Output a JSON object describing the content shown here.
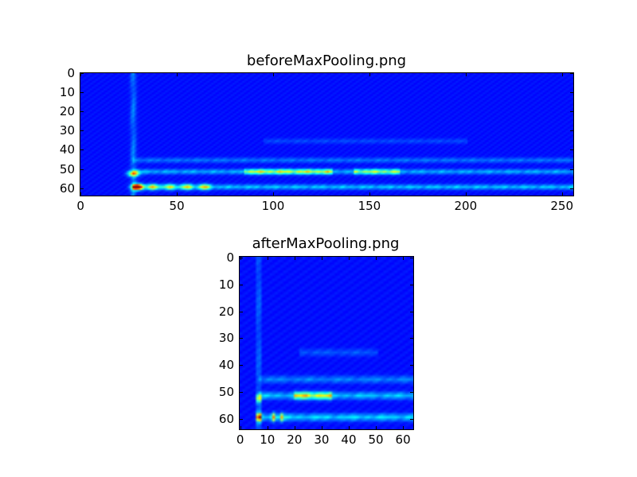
{
  "chart_data": [
    {
      "type": "heatmap",
      "title": "beforeMaxPooling.png",
      "colormap": "jet",
      "xlim": [
        0,
        256
      ],
      "ylim": [
        64,
        0
      ],
      "xticks": [
        "0",
        "50",
        "100",
        "150",
        "200",
        "250"
      ],
      "yticks": [
        "0",
        "10",
        "20",
        "30",
        "40",
        "50",
        "60"
      ],
      "shape": [
        64,
        256
      ],
      "features": {
        "spots": [
          {
            "x": 29,
            "y": 59,
            "v": 1.0
          },
          {
            "x": 27,
            "y": 52,
            "v": 0.6
          },
          {
            "x": 37,
            "y": 59,
            "v": 0.45
          },
          {
            "x": 46,
            "y": 59,
            "v": 0.4
          },
          {
            "x": 55,
            "y": 59,
            "v": 0.42
          },
          {
            "x": 64,
            "y": 59,
            "v": 0.45
          }
        ],
        "lines": [
          {
            "y": 59,
            "x0": 27,
            "x1": 256,
            "v": 0.25
          },
          {
            "y": 51,
            "x0": 27,
            "x1": 256,
            "v": 0.22
          },
          {
            "y": 51,
            "x0": 85,
            "x1": 130,
            "v": 0.42
          },
          {
            "y": 51,
            "x0": 142,
            "x1": 165,
            "v": 0.35
          },
          {
            "y": 45,
            "x0": 27,
            "x1": 256,
            "v": 0.14
          },
          {
            "y": 35,
            "x0": 95,
            "x1": 200,
            "v": 0.08
          }
        ],
        "columns": [
          {
            "x": 27,
            "y0": 0,
            "y1": 64,
            "v": 0.15
          }
        ]
      }
    },
    {
      "type": "heatmap",
      "title": "afterMaxPooling.png",
      "colormap": "jet",
      "xlim": [
        0,
        64
      ],
      "ylim": [
        64,
        0
      ],
      "xticks": [
        "0",
        "10",
        "20",
        "30",
        "40",
        "50",
        "60"
      ],
      "yticks": [
        "0",
        "10",
        "20",
        "30",
        "40",
        "50",
        "60"
      ],
      "shape": [
        64,
        64
      ],
      "features": {
        "spots": [
          {
            "x": 6.5,
            "y": 59,
            "v": 1.0
          },
          {
            "x": 6.5,
            "y": 52,
            "v": 0.65
          },
          {
            "x": 12,
            "y": 59,
            "v": 0.5
          },
          {
            "x": 15,
            "y": 59,
            "v": 0.45
          }
        ],
        "lines": [
          {
            "y": 59,
            "x0": 7,
            "x1": 64,
            "v": 0.28
          },
          {
            "y": 51,
            "x0": 7,
            "x1": 64,
            "v": 0.25
          },
          {
            "y": 51,
            "x0": 20,
            "x1": 33,
            "v": 0.45
          },
          {
            "y": 45,
            "x0": 7,
            "x1": 64,
            "v": 0.16
          },
          {
            "y": 35,
            "x0": 22,
            "x1": 50,
            "v": 0.1
          }
        ],
        "columns": [
          {
            "x": 6.5,
            "y0": 0,
            "y1": 64,
            "v": 0.18
          }
        ]
      }
    }
  ]
}
